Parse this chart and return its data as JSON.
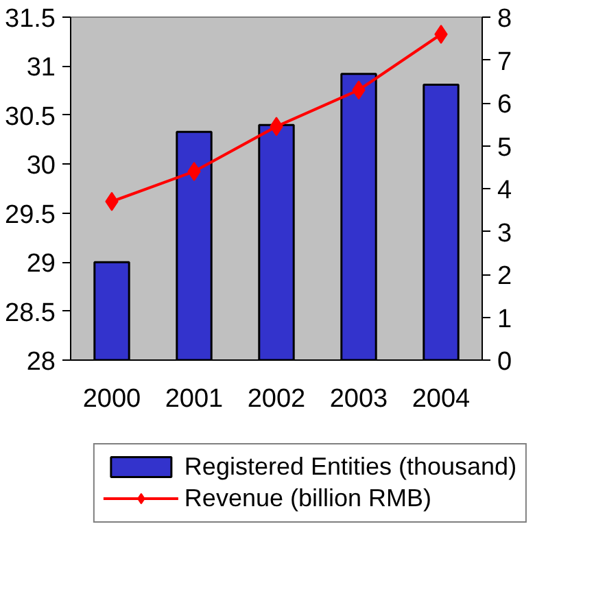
{
  "chart_data": {
    "type": "bar",
    "categories": [
      "2000",
      "2001",
      "2002",
      "2003",
      "2004"
    ],
    "series": [
      {
        "name": "Registered Entities (thousand)",
        "type": "bar",
        "color": "#3333cc",
        "values": [
          29.0,
          30.33,
          30.4,
          30.92,
          30.81
        ]
      },
      {
        "name": "Revenue (billion RMB)",
        "type": "line",
        "axis": "y2",
        "color": "#ff0000",
        "marker": "diamond",
        "values": [
          3.7,
          4.4,
          5.45,
          6.3,
          7.6
        ]
      }
    ],
    "ylim": [
      28,
      31.5
    ],
    "yticks": [
      28,
      28.5,
      29,
      29.5,
      30,
      30.5,
      31,
      31.5
    ],
    "y2lim": [
      0,
      8
    ],
    "y2ticks": [
      0,
      1,
      2,
      3,
      4,
      5,
      6,
      7,
      8
    ],
    "grid": false,
    "legend": "bottom"
  }
}
